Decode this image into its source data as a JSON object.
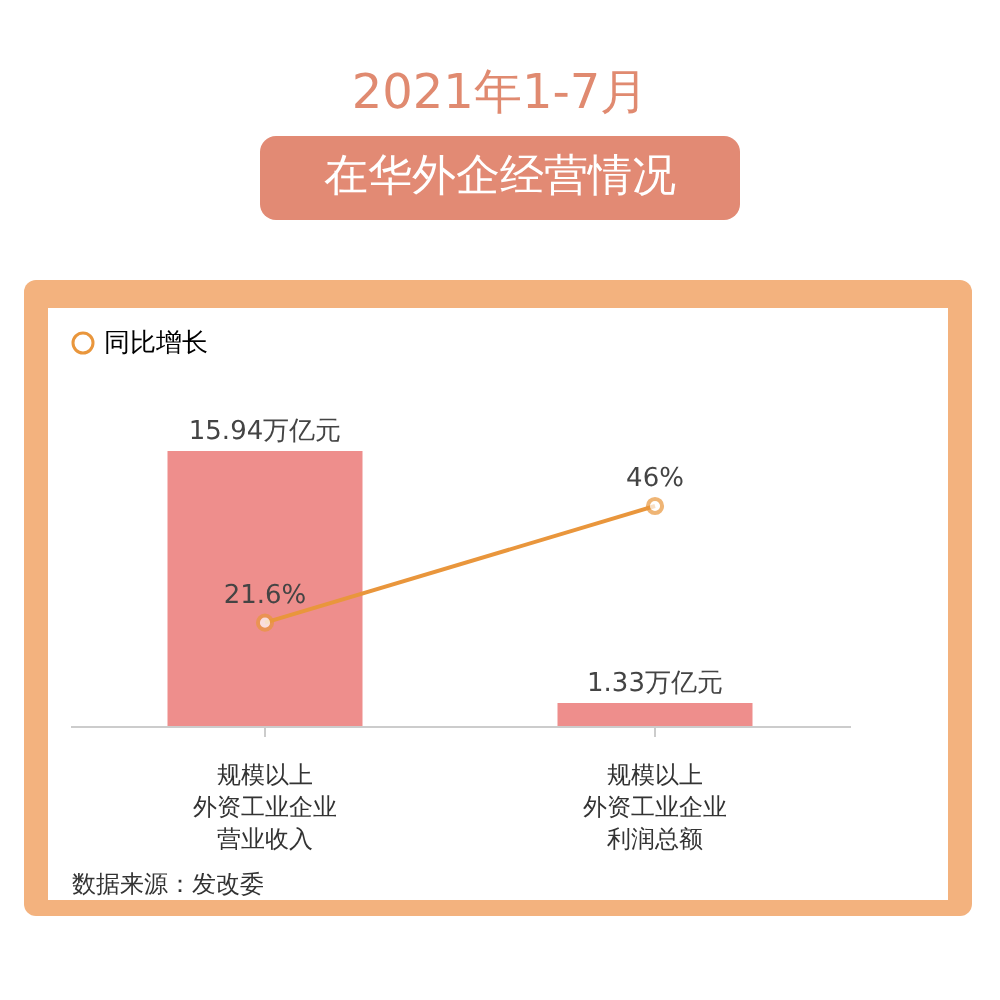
{
  "chart_data": {
    "type": "bar",
    "title": "2021年1-7月",
    "subtitle": "在华外企经营情况",
    "categories": [
      "规模以上外资工业企业营业收入",
      "规模以上外资工业企业利润总额"
    ],
    "series": [
      {
        "color": "#ee8e8c",
        "values": [
          15.94,
          1.33
        ],
        "value_labels": [
          "15.94万亿元",
          "1.33万亿元"
        ]
      },
      {
        "name": "同比增长",
        "type": "line",
        "axis": "y2",
        "color": "#e9963c",
        "values": [
          21.6,
          46
        ],
        "value_labels": [
          "21.6%",
          "46%"
        ]
      }
    ],
    "legend": "top",
    "marker": "circle",
    "line_style": "solid",
    "tick_labels": "x",
    "annotations": [
      "数据来源：发改委"
    ]
  }
}
